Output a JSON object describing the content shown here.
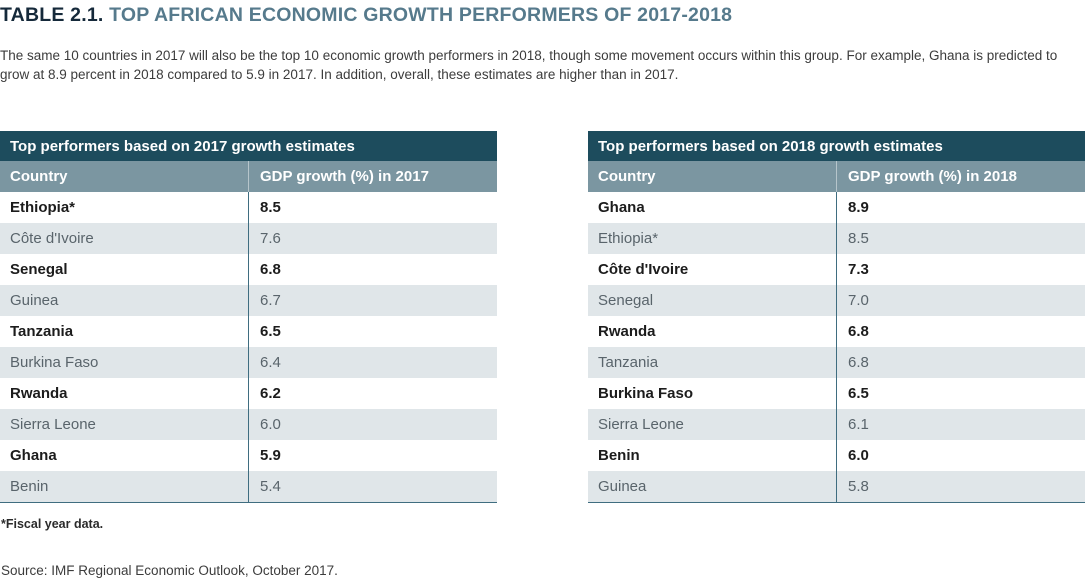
{
  "title": {
    "label": "TABLE 2.1.",
    "text": "TOP AFRICAN ECONOMIC GROWTH PERFORMERS OF 2017-2018"
  },
  "description": "The same 10 countries in 2017 will also be the top 10 economic growth performers in 2018, though some movement occurs within this group. For example, Ghana is predicted to grow at 8.9 percent in 2018 compared to 5.9 in 2017. In addition, overall, these estimates are higher than in 2017.",
  "tables": [
    {
      "header": "Top performers based on 2017 growth estimates",
      "columns": [
        "Country",
        "GDP growth (%) in 2017"
      ],
      "rows": [
        [
          "Ethiopia*",
          "8.5"
        ],
        [
          "Côte d'Ivoire",
          "7.6"
        ],
        [
          "Senegal",
          "6.8"
        ],
        [
          "Guinea",
          "6.7"
        ],
        [
          "Tanzania",
          "6.5"
        ],
        [
          "Burkina Faso",
          "6.4"
        ],
        [
          "Rwanda",
          "6.2"
        ],
        [
          "Sierra Leone",
          "6.0"
        ],
        [
          "Ghana",
          "5.9"
        ],
        [
          "Benin",
          "5.4"
        ]
      ]
    },
    {
      "header": "Top performers based on 2018 growth estimates",
      "columns": [
        "Country",
        "GDP growth (%) in 2018"
      ],
      "rows": [
        [
          "Ghana",
          "8.9"
        ],
        [
          "Ethiopia*",
          "8.5"
        ],
        [
          "Côte d'Ivoire",
          "7.3"
        ],
        [
          "Senegal",
          "7.0"
        ],
        [
          "Rwanda",
          "6.8"
        ],
        [
          "Tanzania",
          "6.8"
        ],
        [
          "Burkina Faso",
          "6.5"
        ],
        [
          "Sierra Leone",
          "6.1"
        ],
        [
          "Benin",
          "6.0"
        ],
        [
          "Guinea",
          "5.8"
        ]
      ]
    }
  ],
  "chart_data": [
    {
      "type": "table",
      "title": "Top performers based on 2017 growth estimates",
      "columns": [
        "Country",
        "GDP growth (%) in 2017"
      ],
      "categories": [
        "Ethiopia*",
        "Côte d'Ivoire",
        "Senegal",
        "Guinea",
        "Tanzania",
        "Burkina Faso",
        "Rwanda",
        "Sierra Leone",
        "Ghana",
        "Benin"
      ],
      "values": [
        8.5,
        7.6,
        6.8,
        6.7,
        6.5,
        6.4,
        6.2,
        6.0,
        5.9,
        5.4
      ]
    },
    {
      "type": "table",
      "title": "Top performers based on 2018 growth estimates",
      "columns": [
        "Country",
        "GDP growth (%) in 2018"
      ],
      "categories": [
        "Ghana",
        "Ethiopia*",
        "Côte d'Ivoire",
        "Senegal",
        "Rwanda",
        "Tanzania",
        "Burkina Faso",
        "Sierra Leone",
        "Benin",
        "Guinea"
      ],
      "values": [
        8.9,
        8.5,
        7.3,
        7.0,
        6.8,
        6.8,
        6.5,
        6.1,
        6.0,
        5.8
      ]
    }
  ],
  "footnote": "*Fiscal year data.",
  "source": "Source: IMF Regional Economic Outlook, October 2017.",
  "colors": {
    "title_dark": "#15293a",
    "title_accent": "#567a8c",
    "header_bg": "#1d4c5d",
    "subheader_bg": "#7b96a1",
    "row_alt_bg": "#e0e6e9",
    "divider": "#3f6d80",
    "body_text": "#3c3c3c",
    "row_bold_text": "#1c1c1c",
    "row_gray_text": "#59646b"
  }
}
